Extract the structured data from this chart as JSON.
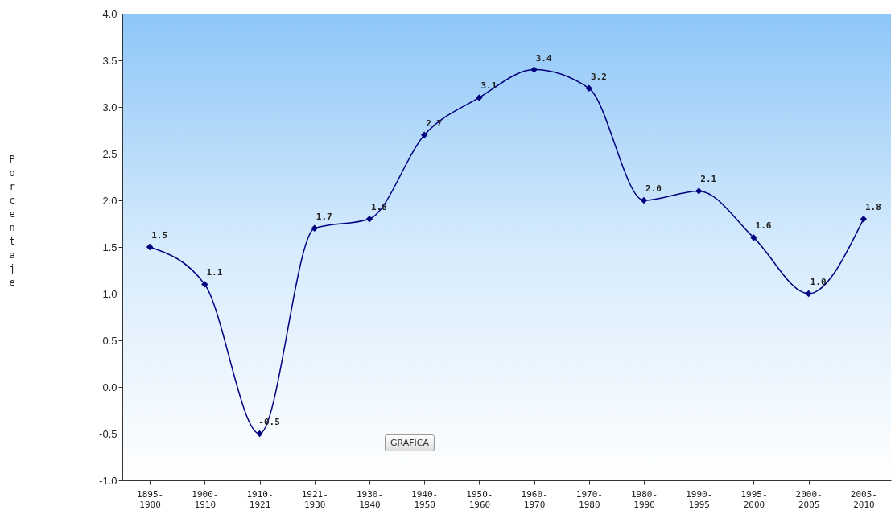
{
  "chart_data": {
    "type": "line",
    "ylabel": "Porcentaje",
    "categories": [
      "1895-1900",
      "1900-1910",
      "1910-1921",
      "1921-1930",
      "1930-1940",
      "1940-1950",
      "1950-1960",
      "1960-1970",
      "1970-1980",
      "1980-1990",
      "1990-1995",
      "1995-2000",
      "2000-2005",
      "2005-2010"
    ],
    "series": [
      {
        "color": "#000080",
        "values": [
          1.5,
          1.1,
          -0.5,
          1.7,
          1.8,
          2.7,
          3.1,
          3.4,
          3.2,
          2.0,
          2.1,
          1.6,
          1.0,
          1.8
        ],
        "value_labels": [
          "1.5",
          "1.1",
          "-0.5",
          "1.7",
          "1.8",
          "2.7",
          "3.1",
          "3.4",
          "3.2",
          "2.0",
          "2.1",
          "1.6",
          "1.0",
          "1.8"
        ]
      }
    ],
    "ylim": [
      -1,
      4
    ],
    "yticks": [
      {
        "value": -1,
        "label": "-1.0"
      },
      {
        "value": -0.5,
        "label": "-0.5"
      },
      {
        "value": 0,
        "label": "0.0"
      },
      {
        "value": 0.5,
        "label": "0.5"
      },
      {
        "value": 1,
        "label": "1.0"
      },
      {
        "value": 1.5,
        "label": "1.5"
      },
      {
        "value": 2,
        "label": "2.0"
      },
      {
        "value": 2.5,
        "label": "2.5"
      },
      {
        "value": 3,
        "label": "3.0"
      },
      {
        "value": 3.5,
        "label": "3.5"
      },
      {
        "value": 4,
        "label": "4.0"
      }
    ],
    "marker": "diamond",
    "grid": false,
    "annotations": [
      "GRAFICA"
    ]
  }
}
